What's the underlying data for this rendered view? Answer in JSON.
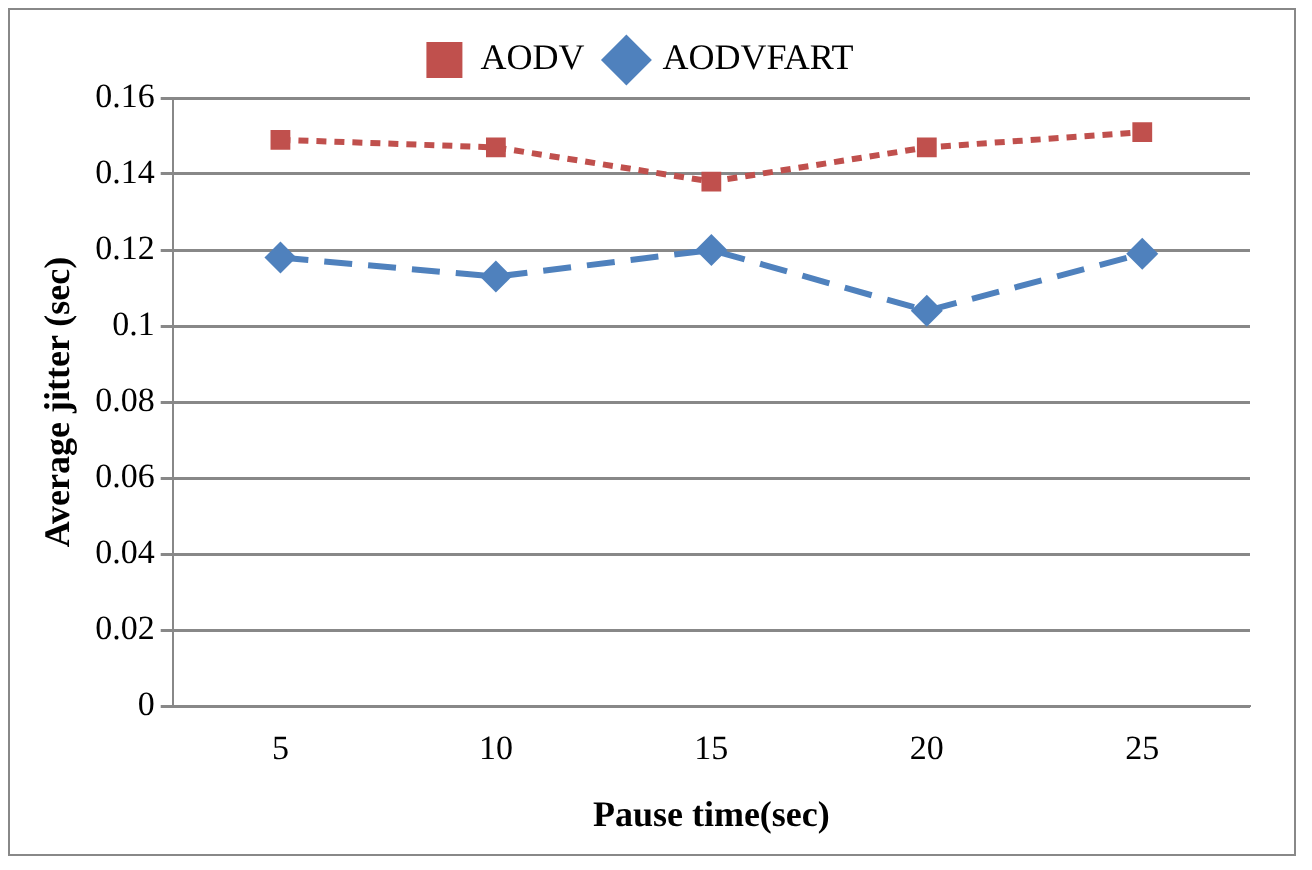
{
  "chart_data": {
    "type": "line",
    "xlabel": "Pause time(sec)",
    "ylabel": "Average jitter (sec)",
    "categories": [
      "5",
      "10",
      "15",
      "20",
      "25"
    ],
    "series": [
      {
        "name": "AODV",
        "color": "#c0504d",
        "marker": "square",
        "line_style": "dotted",
        "values": [
          0.149,
          0.147,
          0.138,
          0.147,
          0.151
        ]
      },
      {
        "name": "AODVFART",
        "color": "#4f81bd",
        "marker": "diamond",
        "line_style": "dashed",
        "values": [
          0.118,
          0.113,
          0.12,
          0.104,
          0.119
        ]
      }
    ],
    "ylim": [
      0,
      0.16
    ],
    "yticks": [
      0,
      0.02,
      0.04,
      0.06,
      0.08,
      0.1,
      0.12,
      0.14,
      0.16
    ],
    "grid": "y",
    "legend": "top"
  }
}
